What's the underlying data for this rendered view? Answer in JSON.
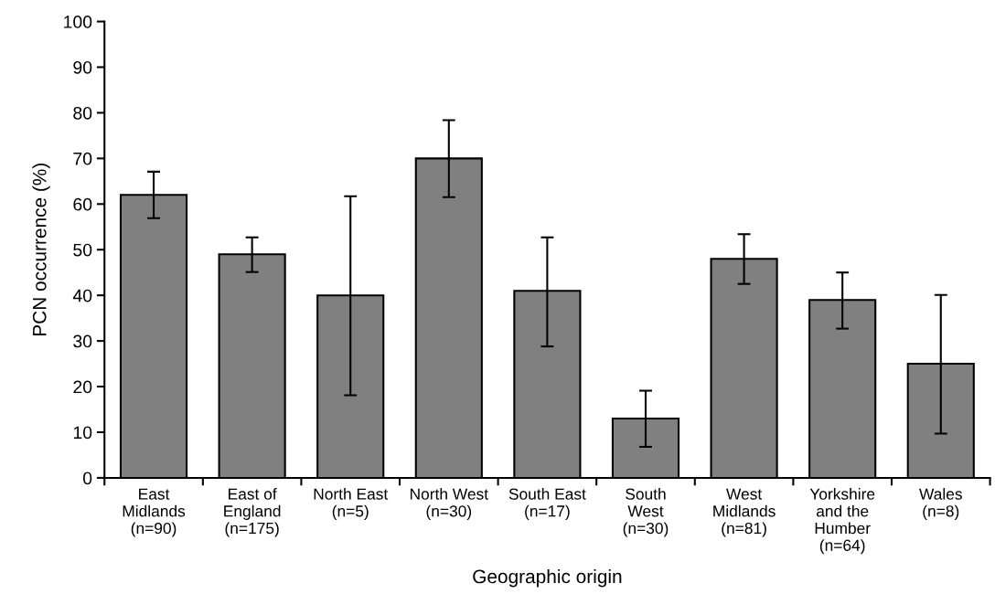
{
  "chart_data": {
    "type": "bar",
    "xlabel": "Geographic origin",
    "ylabel": "PCN occurrence (%)",
    "categories": [
      "East\nMidlands\n(n=90)",
      "East of\nEngland\n(n=175)",
      "North East\n(n=5)",
      "North West\n(n=30)",
      "South East\n(n=17)",
      "South\nWest\n(n=30)",
      "West\nMidlands\n(n=81)",
      "Yorkshire\nand the\nHumber\n(n=64)",
      "Wales\n(n=8)"
    ],
    "values": [
      62,
      49,
      40,
      70,
      41,
      13,
      48,
      39,
      25
    ],
    "errors": [
      [
        56.9,
        67.1
      ],
      [
        45.1,
        52.7
      ],
      [
        18.1,
        61.7
      ],
      [
        61.5,
        78.4
      ],
      [
        28.8,
        52.7
      ],
      [
        6.8,
        19.1
      ],
      [
        42.5,
        53.4
      ],
      [
        32.7,
        45.0
      ],
      [
        9.7,
        40.1
      ]
    ],
    "color": "#808080",
    "ylim": [
      0,
      100
    ],
    "yticks": [
      0,
      10,
      20,
      30,
      40,
      50,
      60,
      70,
      80,
      90,
      100
    ],
    "grid": false,
    "legend": false
  }
}
